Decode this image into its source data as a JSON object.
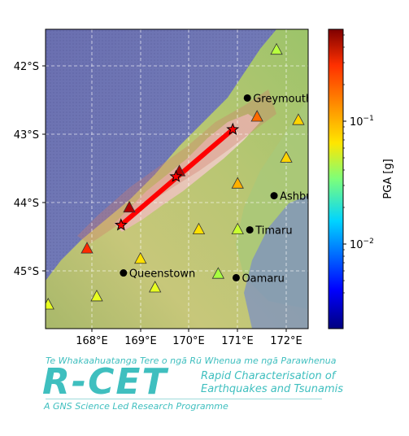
{
  "map": {
    "x_ticks": [
      "168°E",
      "169°E",
      "170°E",
      "171°E",
      "172°E"
    ],
    "y_ticks": [
      "42°S",
      "43°S",
      "44°S",
      "45°S"
    ],
    "towns": [
      {
        "name": "Greymouth",
        "lon": 171.2,
        "lat": -42.47
      },
      {
        "name": "Ashburton",
        "lon": 171.75,
        "lat": -43.9
      },
      {
        "name": "Timaru",
        "lon": 171.25,
        "lat": -44.4
      },
      {
        "name": "Queenstown",
        "lon": 168.65,
        "lat": -45.03
      },
      {
        "name": "Oamaru",
        "lon": 170.97,
        "lat": -45.1
      }
    ],
    "epicenters": [
      {
        "lon": 168.6,
        "lat": -44.33
      },
      {
        "lon": 169.73,
        "lat": -43.62
      },
      {
        "lon": 170.9,
        "lat": -42.93
      }
    ],
    "rupture": {
      "start": {
        "lon": 168.6,
        "lat": -44.33
      },
      "end": {
        "lon": 170.9,
        "lat": -42.93
      }
    },
    "stations": [
      {
        "lon": 171.8,
        "lat": -41.77,
        "color": "#b8ff40"
      },
      {
        "lon": 171.4,
        "lat": -42.75,
        "color": "#ff6a00"
      },
      {
        "lon": 172.25,
        "lat": -42.8,
        "color": "#ffd400"
      },
      {
        "lon": 172.0,
        "lat": -43.35,
        "color": "#ffd400"
      },
      {
        "lon": 171.0,
        "lat": -43.73,
        "color": "#ffb000"
      },
      {
        "lon": 169.8,
        "lat": -43.55,
        "color": "#b00000"
      },
      {
        "lon": 168.77,
        "lat": -44.08,
        "color": "#b00000"
      },
      {
        "lon": 167.9,
        "lat": -44.68,
        "color": "#ff2a00"
      },
      {
        "lon": 170.2,
        "lat": -44.4,
        "color": "#ffe000"
      },
      {
        "lon": 171.0,
        "lat": -44.4,
        "color": "#c8ff30"
      },
      {
        "lon": 169.0,
        "lat": -44.83,
        "color": "#ffe000"
      },
      {
        "lon": 170.6,
        "lat": -45.05,
        "color": "#a8ff40"
      },
      {
        "lon": 169.3,
        "lat": -45.25,
        "color": "#e8ff20"
      },
      {
        "lon": 168.1,
        "lat": -45.38,
        "color": "#e8ff20"
      },
      {
        "lon": 167.1,
        "lat": -45.5,
        "color": "#e8ff20"
      }
    ]
  },
  "colorbar": {
    "label": "PGA [g]",
    "scale": "log",
    "min": 0.0025,
    "max": 0.6,
    "ticks": [
      "10^-2",
      "10^-1"
    ]
  },
  "logo": {
    "maori_text": "Te Whakaahuatanga Tere o ngā Rū Whenua me ngā Parawhenua",
    "name": "R-CET",
    "subtitle_line1": "Rapid Characterisation of",
    "subtitle_line2": "Earthquakes and Tsunamis",
    "tagline": "A GNS Science Led Research Programme"
  }
}
